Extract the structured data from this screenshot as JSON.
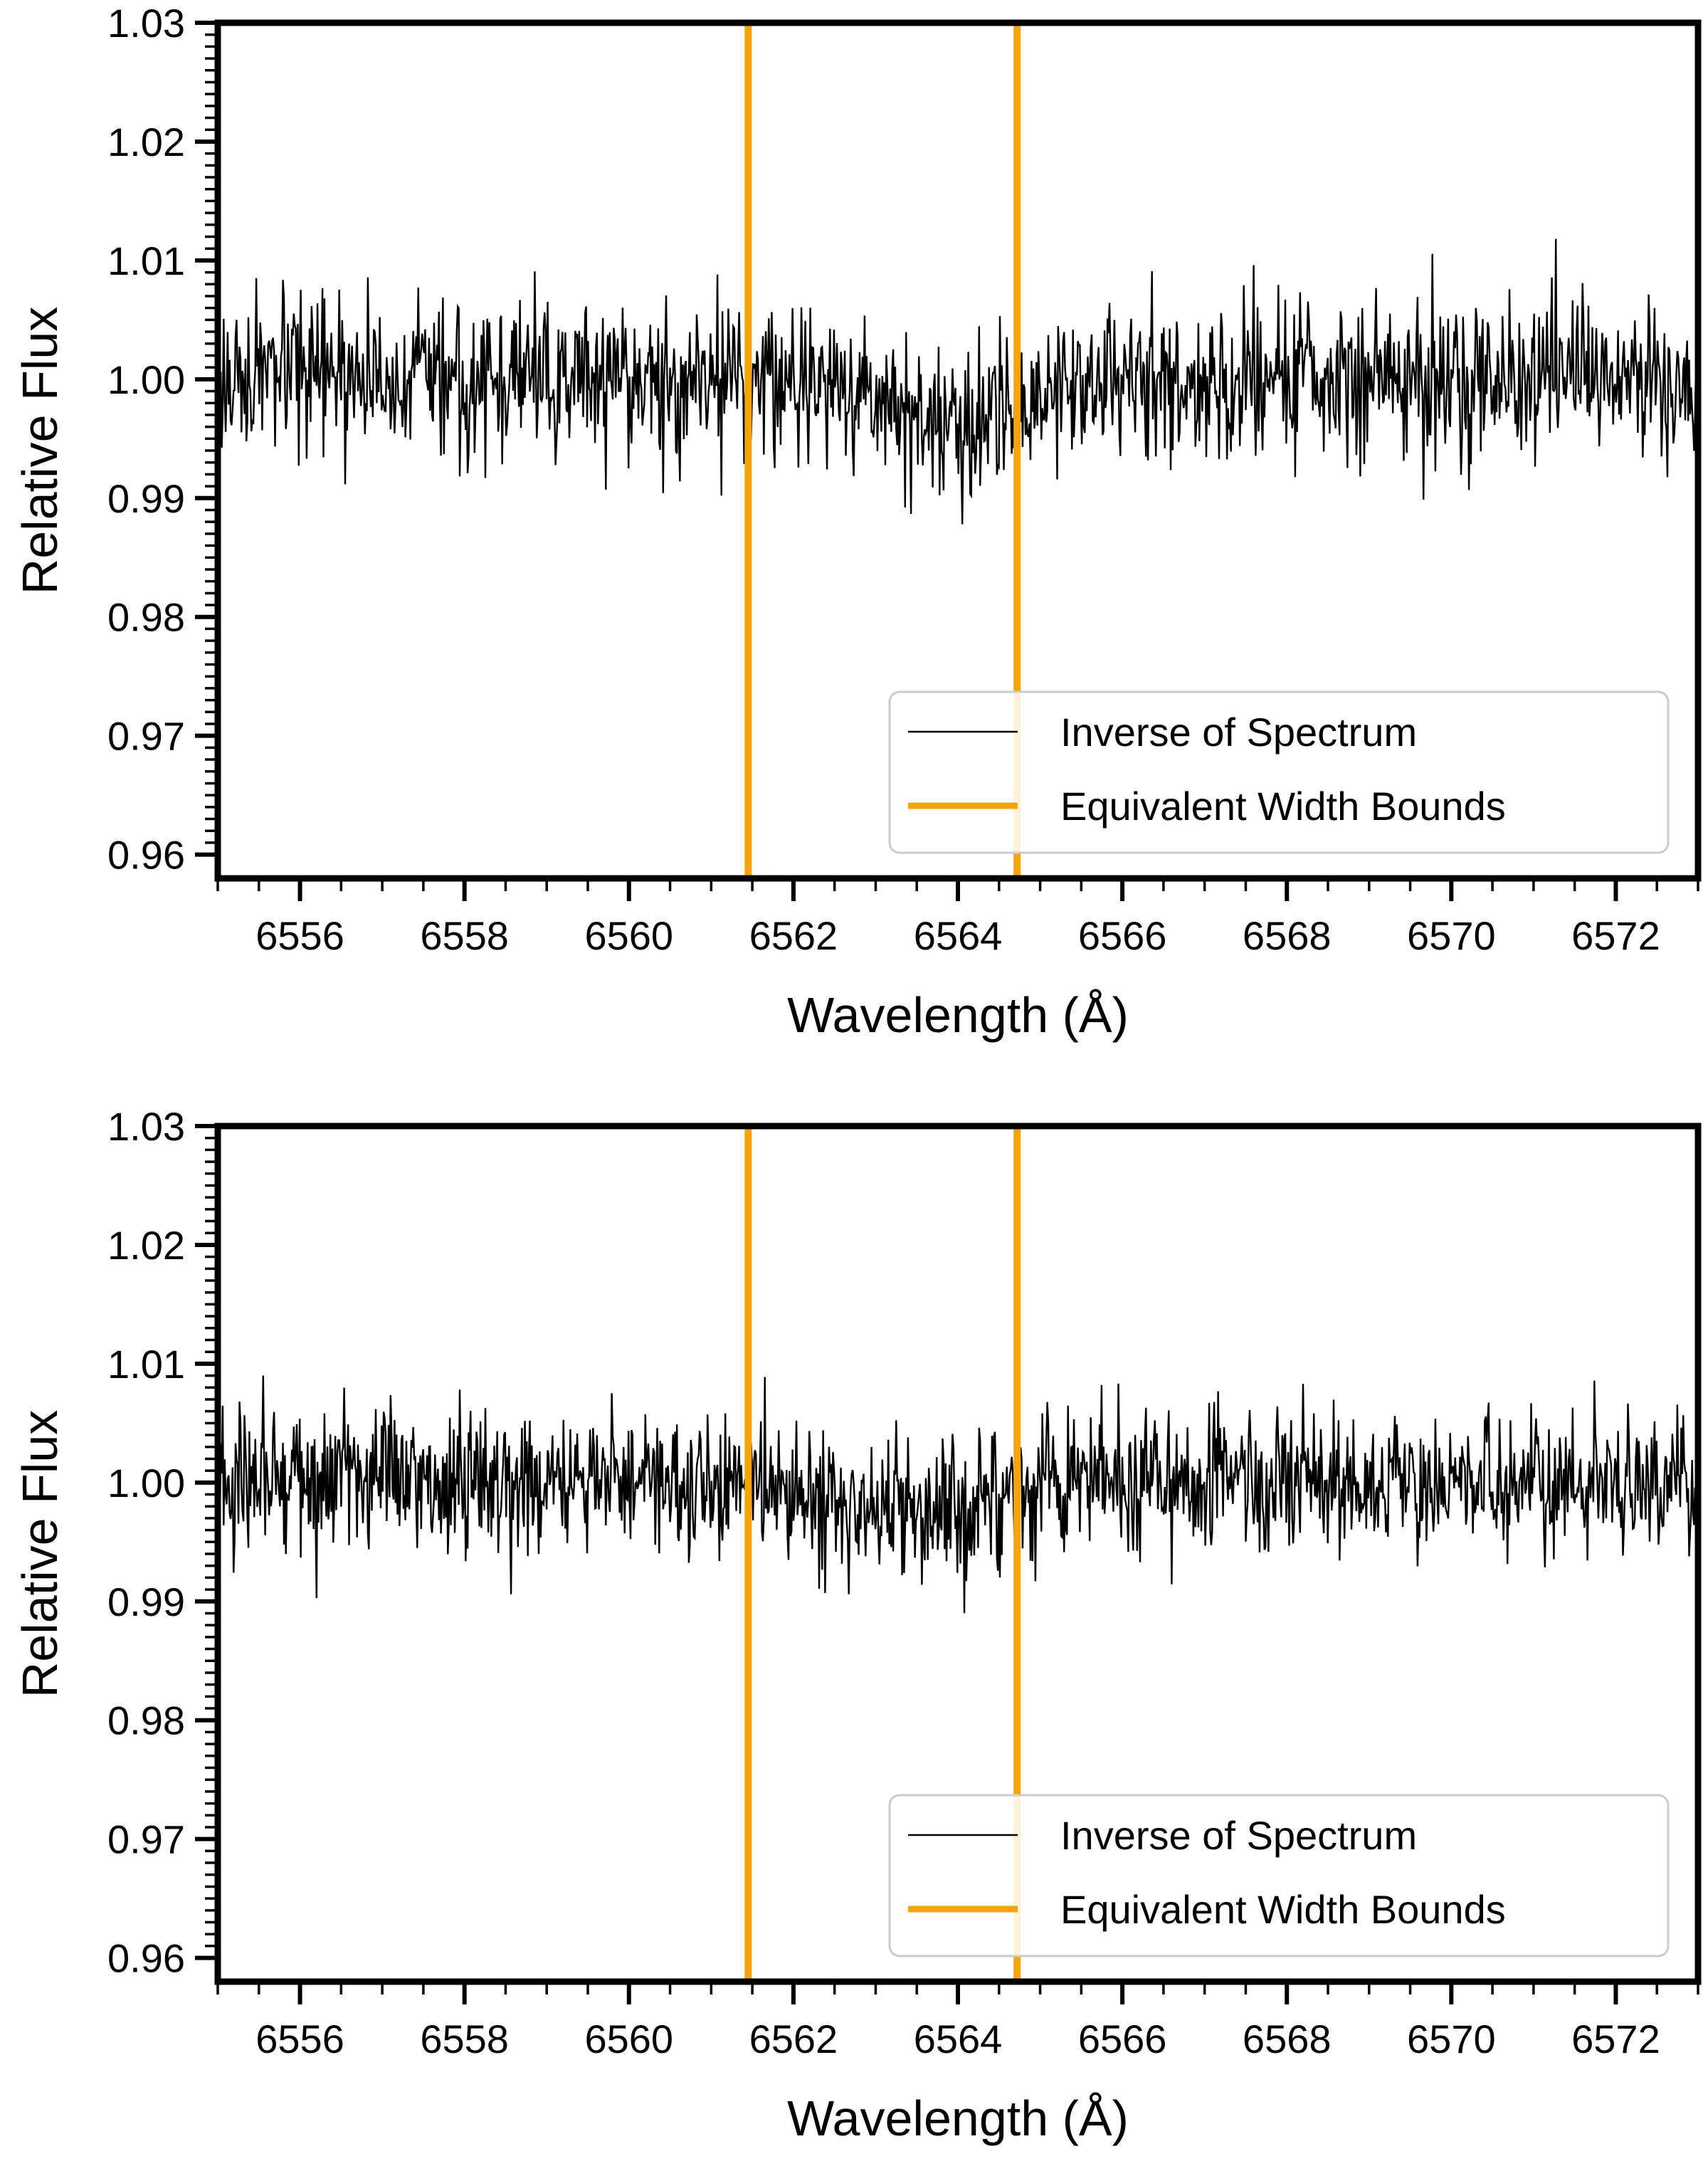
{
  "chart_data": [
    {
      "type": "line",
      "panel": "top",
      "xlabel": "Wavelength (Å)",
      "ylabel": "Relative Flux",
      "xlim": [
        6555,
        6573
      ],
      "ylim": [
        0.958,
        1.03
      ],
      "xticks": [
        6556,
        6558,
        6560,
        6562,
        6564,
        6566,
        6568,
        6570,
        6572
      ],
      "xtick_labels": [
        "6556",
        "6558",
        "6560",
        "6562",
        "6564",
        "6566",
        "6568",
        "6570",
        "6572"
      ],
      "yticks": [
        0.96,
        0.97,
        0.98,
        0.99,
        1.0,
        1.01,
        1.02,
        1.03
      ],
      "ytick_labels": [
        "0.96",
        "0.97",
        "0.98",
        "0.99",
        "1.00",
        "1.01",
        "1.02",
        "1.03"
      ],
      "series": [
        {
          "name": "Inverse of Spectrum",
          "color": "#000000",
          "noise_sd": 0.0032,
          "seed": 17,
          "profile": {
            "center": 6563.9,
            "depth": 0.004,
            "width": 0.9
          },
          "x_range": [
            6555,
            6573
          ],
          "n_points": 1500
        },
        {
          "name": "Equivalent Width Bounds",
          "color": "#F5A50A",
          "x": [
            6561.45,
            6564.72
          ]
        }
      ],
      "legend": {
        "position": "lower-right",
        "entries": [
          "Inverse of Spectrum",
          "Equivalent Width Bounds"
        ]
      }
    },
    {
      "type": "line",
      "panel": "bottom",
      "xlabel": "Wavelength (Å)",
      "ylabel": "Relative Flux",
      "xlim": [
        6555,
        6573
      ],
      "ylim": [
        0.958,
        1.03
      ],
      "xticks": [
        6556,
        6558,
        6560,
        6562,
        6564,
        6566,
        6568,
        6570,
        6572
      ],
      "xtick_labels": [
        "6556",
        "6558",
        "6560",
        "6562",
        "6564",
        "6566",
        "6568",
        "6570",
        "6572"
      ],
      "yticks": [
        0.96,
        0.97,
        0.98,
        0.99,
        1.0,
        1.01,
        1.02,
        1.03
      ],
      "ytick_labels": [
        "0.96",
        "0.97",
        "0.98",
        "0.99",
        "1.00",
        "1.01",
        "1.02",
        "1.03"
      ],
      "series": [
        {
          "name": "Inverse of Spectrum",
          "color": "#000000",
          "noise_sd": 0.0031,
          "seed": 91,
          "profile": {
            "center": 6563.3,
            "depth": 0.003,
            "width": 1.1
          },
          "x_range": [
            6555,
            6573
          ],
          "n_points": 1500
        },
        {
          "name": "Equivalent Width Bounds",
          "color": "#F5A50A",
          "x": [
            6561.45,
            6564.72
          ]
        }
      ],
      "legend": {
        "position": "lower-right",
        "entries": [
          "Inverse of Spectrum",
          "Equivalent Width Bounds"
        ]
      }
    }
  ]
}
